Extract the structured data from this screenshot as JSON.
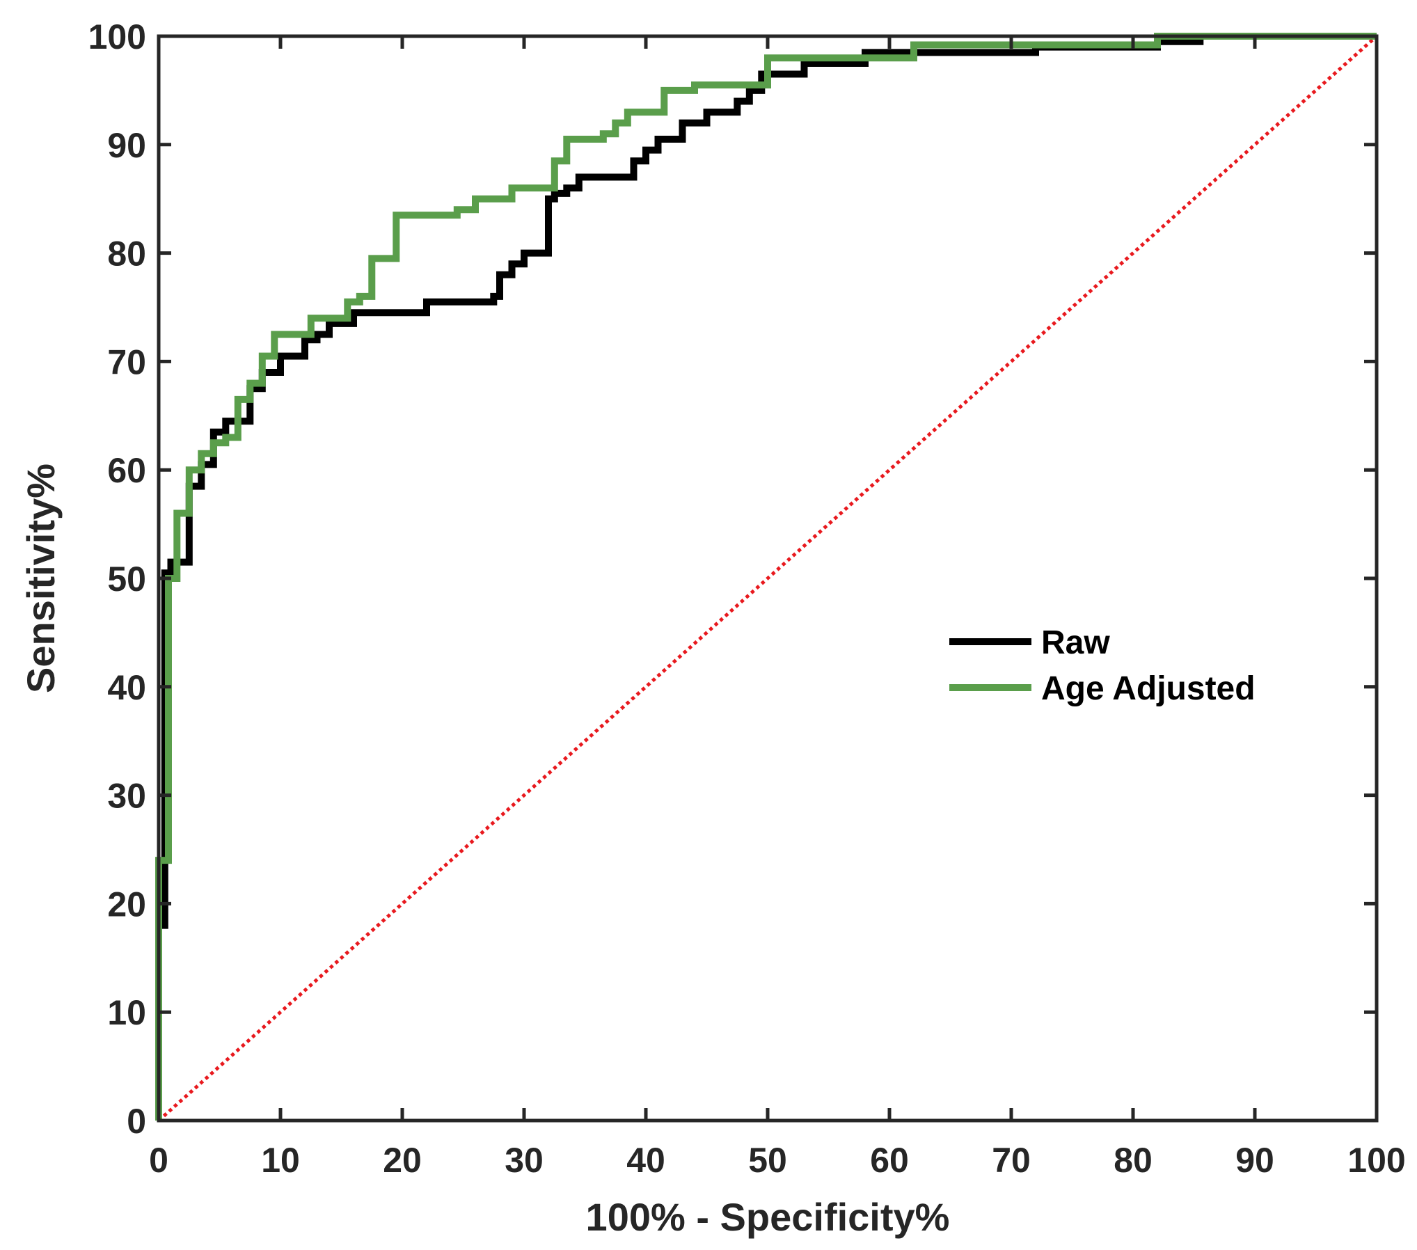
{
  "colors": {
    "raw": "#000000",
    "age_adjusted": "#5a9e4b",
    "reference": "#e8191e",
    "axis": "#262626"
  },
  "chart_data": {
    "type": "line",
    "title": "",
    "xlabel": "100% - Specificity%",
    "ylabel": "Sensitivity%",
    "xlim": [
      0,
      100
    ],
    "ylim": [
      0,
      100
    ],
    "xticks": [
      "0",
      "10",
      "20",
      "30",
      "40",
      "50",
      "60",
      "70",
      "80",
      "90",
      "100"
    ],
    "yticks": [
      "0",
      "10",
      "20",
      "30",
      "40",
      "50",
      "60",
      "70",
      "80",
      "90",
      "100"
    ],
    "grid": false,
    "legend_position": "center-right",
    "series": [
      {
        "name": "Raw",
        "color": "#000000",
        "step": true,
        "x": [
          0,
          0,
          0.5,
          0.5,
          1,
          1,
          2.5,
          2.5,
          3.5,
          3.5,
          4.5,
          4.5,
          5.5,
          5.5,
          7.5,
          7.5,
          8.5,
          8.5,
          10,
          10,
          12,
          12,
          13,
          13,
          14,
          14,
          16,
          16,
          22,
          22,
          27.5,
          27.5,
          28,
          28,
          29,
          29,
          30,
          30,
          32,
          32,
          32.5,
          32.5,
          33.5,
          33.5,
          34.5,
          34.5,
          39,
          39,
          40,
          40,
          41,
          41,
          43,
          43,
          45,
          45,
          47.5,
          47.5,
          48.5,
          48.5,
          49.5,
          49.5,
          53,
          53,
          58,
          58,
          72,
          72,
          82,
          82,
          85.5,
          85.5,
          100
        ],
        "y": [
          0,
          18,
          18,
          50.5,
          50.5,
          51.5,
          51.5,
          58.5,
          58.5,
          60.5,
          60.5,
          63.5,
          63.5,
          64.5,
          64.5,
          67.5,
          67.5,
          69,
          69,
          70.5,
          70.5,
          72,
          72,
          72.5,
          72.5,
          73.5,
          73.5,
          74.5,
          74.5,
          75.5,
          75.5,
          76,
          76,
          78,
          78,
          79,
          79,
          80,
          80,
          85,
          85,
          85.5,
          85.5,
          86,
          86,
          87,
          87,
          88.5,
          88.5,
          89.5,
          89.5,
          90.5,
          90.5,
          92,
          92,
          93,
          93,
          94,
          94,
          95,
          95,
          96.5,
          96.5,
          97.5,
          97.5,
          98.5,
          98.5,
          99,
          99,
          99.5,
          99.5,
          100,
          100
        ]
      },
      {
        "name": "Age Adjusted",
        "color": "#5a9e4b",
        "step": true,
        "x": [
          0,
          0,
          0.8,
          0.8,
          1.5,
          1.5,
          2.5,
          2.5,
          3.5,
          3.5,
          4.5,
          4.5,
          5.5,
          5.5,
          6.5,
          6.5,
          7.5,
          7.5,
          8.5,
          8.5,
          9.5,
          9.5,
          12.5,
          12.5,
          15.5,
          15.5,
          16.5,
          16.5,
          17.5,
          17.5,
          19.5,
          19.5,
          24.5,
          24.5,
          26,
          26,
          29,
          29,
          32.5,
          32.5,
          33.5,
          33.5,
          36.5,
          36.5,
          37.5,
          37.5,
          38.5,
          38.5,
          41.5,
          41.5,
          44,
          44,
          50,
          50,
          62,
          62,
          82,
          82,
          100
        ],
        "y": [
          0,
          24,
          24,
          50,
          50,
          56,
          56,
          60,
          60,
          61.5,
          61.5,
          62.5,
          62.5,
          63,
          63,
          66.5,
          66.5,
          68,
          68,
          70.5,
          70.5,
          72.5,
          72.5,
          74,
          74,
          75.5,
          75.5,
          76,
          76,
          79.5,
          79.5,
          83.5,
          83.5,
          84,
          84,
          85,
          85,
          86,
          86,
          88.5,
          88.5,
          90.5,
          90.5,
          91,
          91,
          92,
          92,
          93,
          93,
          95,
          95,
          95.5,
          95.5,
          98,
          98,
          99.2,
          99.2,
          100,
          100
        ]
      },
      {
        "name": "Reference",
        "color": "#e8191e",
        "style": "dotted",
        "x": [
          0,
          100
        ],
        "y": [
          0,
          100
        ]
      }
    ]
  }
}
